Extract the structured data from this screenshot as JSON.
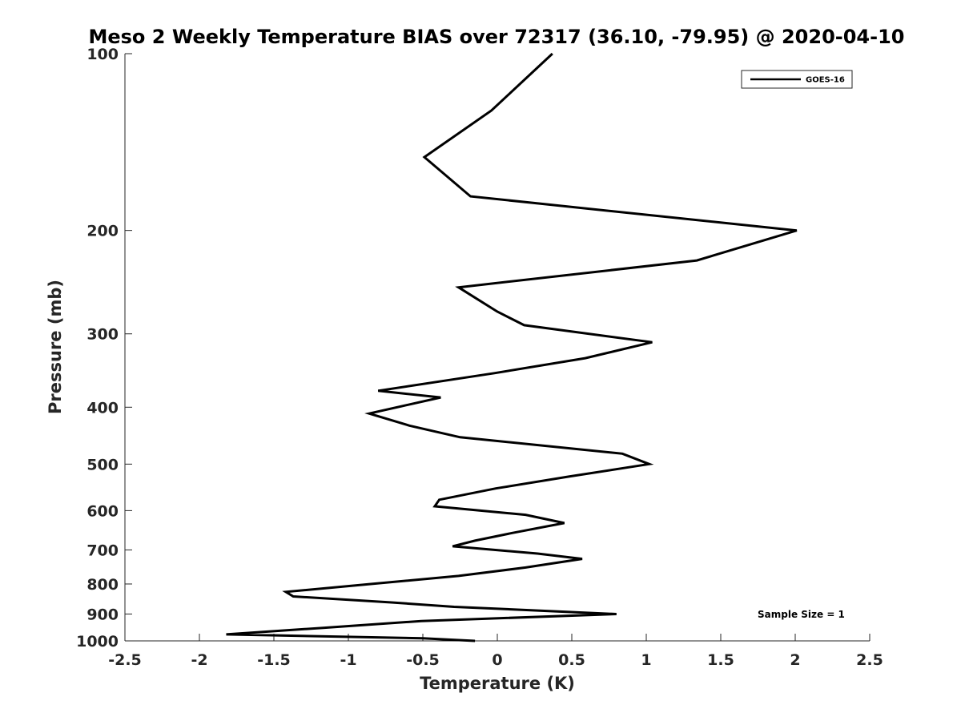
{
  "chart_data": {
    "type": "line",
    "title": "Meso 2 Weekly Temperature BIAS over 72317 (36.10, -79.95) @ 2020-04-10",
    "xlabel": "Temperature (K)",
    "ylabel": "Pressure (mb)",
    "xlim": [
      -2.5,
      2.5
    ],
    "ylim": [
      100,
      1000
    ],
    "yscale": "log",
    "y_reversed": true,
    "grid": false,
    "xticks": [
      -2.5,
      -2,
      -1.5,
      -1,
      -0.5,
      0,
      0.5,
      1,
      1.5,
      2,
      2.5
    ],
    "xtick_labels": [
      "-2.5",
      "-2",
      "-1.5",
      "-1",
      "-0.5",
      "0",
      "0.5",
      "1",
      "1.5",
      "2",
      "2.5"
    ],
    "yticks": [
      100,
      200,
      300,
      400,
      500,
      600,
      700,
      800,
      900,
      1000
    ],
    "ytick_labels": [
      "100",
      "200",
      "300",
      "400",
      "500",
      "600",
      "700",
      "800",
      "900",
      "1000"
    ],
    "legend_position": "top-right",
    "series": [
      {
        "name": "GOES-16",
        "color": "#000000",
        "points": [
          [
            0.37,
            100
          ],
          [
            -0.04,
            125
          ],
          [
            -0.49,
            150
          ],
          [
            -0.18,
            175
          ],
          [
            2.01,
            200
          ],
          [
            1.34,
            225
          ],
          [
            -0.26,
            250
          ],
          [
            0.0,
            275
          ],
          [
            0.18,
            290
          ],
          [
            1.04,
            310
          ],
          [
            0.59,
            330
          ],
          [
            -0.02,
            350
          ],
          [
            -0.8,
            375
          ],
          [
            -0.38,
            385
          ],
          [
            -0.86,
            410
          ],
          [
            -0.59,
            430
          ],
          [
            -0.25,
            450
          ],
          [
            0.84,
            480
          ],
          [
            1.02,
            500
          ],
          [
            0.48,
            525
          ],
          [
            -0.01,
            550
          ],
          [
            -0.39,
            575
          ],
          [
            -0.42,
            590
          ],
          [
            0.19,
            610
          ],
          [
            0.45,
            630
          ],
          [
            0.1,
            655
          ],
          [
            -0.15,
            675
          ],
          [
            -0.3,
            690
          ],
          [
            0.27,
            710
          ],
          [
            0.57,
            725
          ],
          [
            0.19,
            750
          ],
          [
            -0.26,
            775
          ],
          [
            -0.85,
            800
          ],
          [
            -1.42,
            825
          ],
          [
            -1.37,
            840
          ],
          [
            -0.71,
            860
          ],
          [
            -0.29,
            875
          ],
          [
            0.8,
            900
          ],
          [
            -0.51,
            925
          ],
          [
            -1.17,
            950
          ],
          [
            -1.82,
            975
          ],
          [
            -0.5,
            990
          ],
          [
            -0.15,
            1000
          ]
        ]
      }
    ],
    "annotation": "Sample Size = 1"
  }
}
